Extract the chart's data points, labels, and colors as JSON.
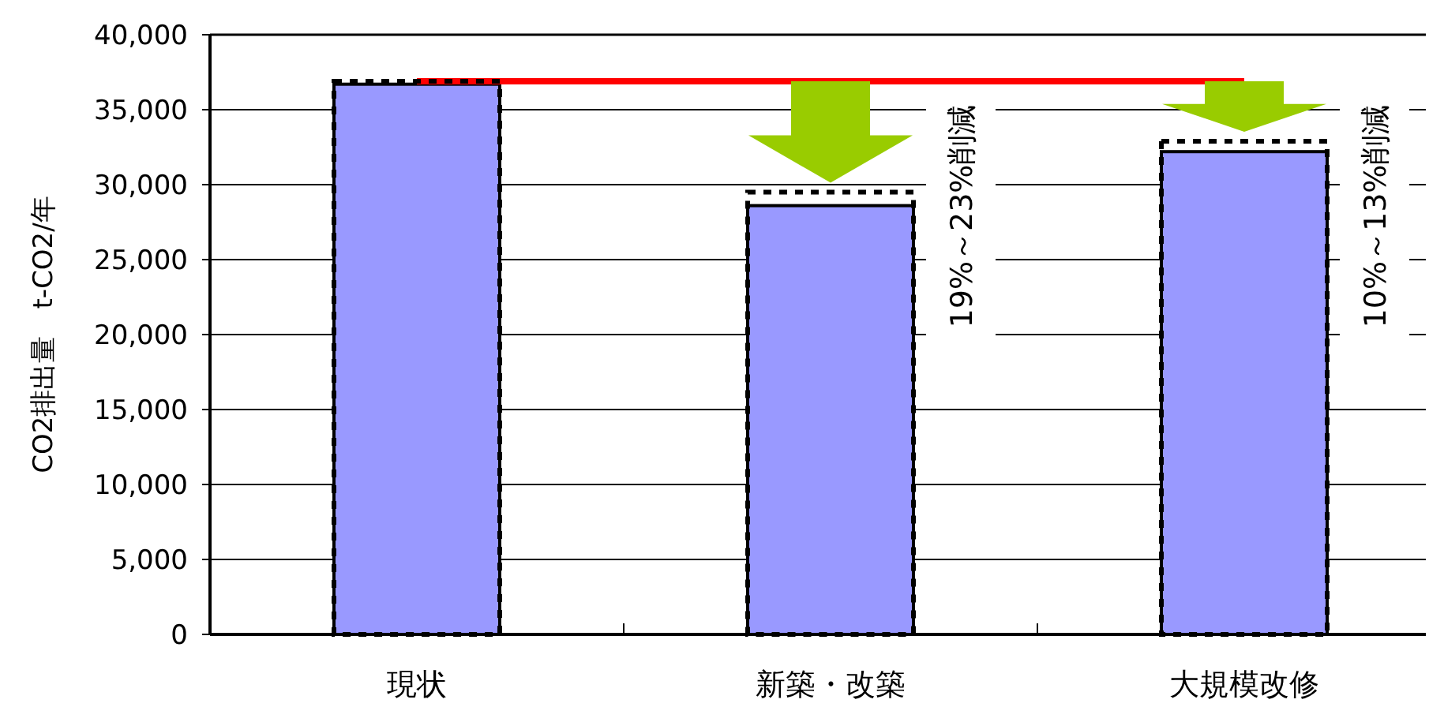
{
  "chart_data": {
    "type": "bar",
    "ylabel": "CO2排出量　t-CO2/年",
    "categories": [
      "現状",
      "新築・改築",
      "大規模改修"
    ],
    "series": [
      {
        "color": "#9999ff",
        "values": [
          36700,
          28600,
          32200
        ]
      },
      {
        "type": "line",
        "color": "#ff0000",
        "marker": "none",
        "values": [
          36900,
          36900,
          36900
        ]
      },
      {
        "type": "bar",
        "color": "#000000",
        "line_style": "dotted",
        "values": [
          36900,
          29500,
          32900
        ]
      }
    ],
    "ylim": [
      0,
      40000
    ],
    "yticks": [
      {
        "value": 0,
        "label": "0"
      },
      {
        "value": 5000,
        "label": "5,000"
      },
      {
        "value": 10000,
        "label": "10,000"
      },
      {
        "value": 15000,
        "label": "15,000"
      },
      {
        "value": 20000,
        "label": "20,000"
      },
      {
        "value": 25000,
        "label": "25,000"
      },
      {
        "value": 30000,
        "label": "30,000"
      },
      {
        "value": 35000,
        "label": "35,000"
      },
      {
        "value": 40000,
        "label": "40,000"
      }
    ],
    "grid": "y",
    "annotations": [
      "19%～23%削減",
      "10%～13%削減"
    ]
  }
}
